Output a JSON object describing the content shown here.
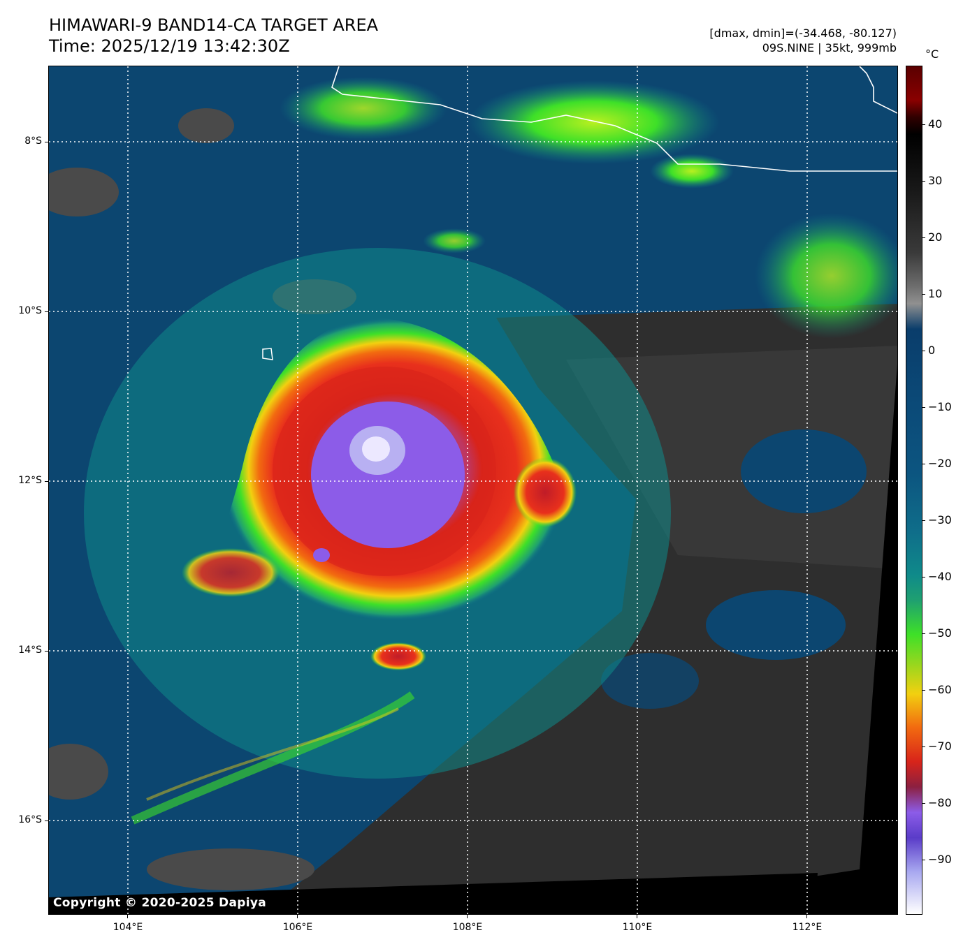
{
  "header": {
    "title_line1": "HIMAWARI-9 BAND14-CA TARGET AREA",
    "title_line2": "Time: 2025/12/19 13:42:30Z",
    "stats": "[dmax, dmin]=(-34.468, -80.127)",
    "storm": "09S.NINE | 35kt, 999mb"
  },
  "map": {
    "copyright": "Copyright © 2020-2025 Dapiya",
    "lon_labels": [
      "104°E",
      "106°E",
      "108°E",
      "110°E",
      "112°E"
    ],
    "lat_labels": [
      "8°S",
      "10°S",
      "12°S",
      "14°S",
      "16°S"
    ]
  },
  "colorbar": {
    "unit": "°C",
    "labels": [
      "40",
      "30",
      "20",
      "10",
      "0",
      "−10",
      "−20",
      "−30",
      "−40",
      "−50",
      "−60",
      "−70",
      "−80",
      "−90"
    ],
    "colors": {
      "darkred": "#5a0000",
      "red": "#d8241a",
      "orange": "#f26a10",
      "yellow": "#f2d010",
      "green": "#3ee028",
      "teal": "#0f8a8a",
      "navy": "#0a3d6b",
      "purple": "#8c5ce8",
      "gray": "#6e6e6e",
      "black": "#000000"
    }
  }
}
